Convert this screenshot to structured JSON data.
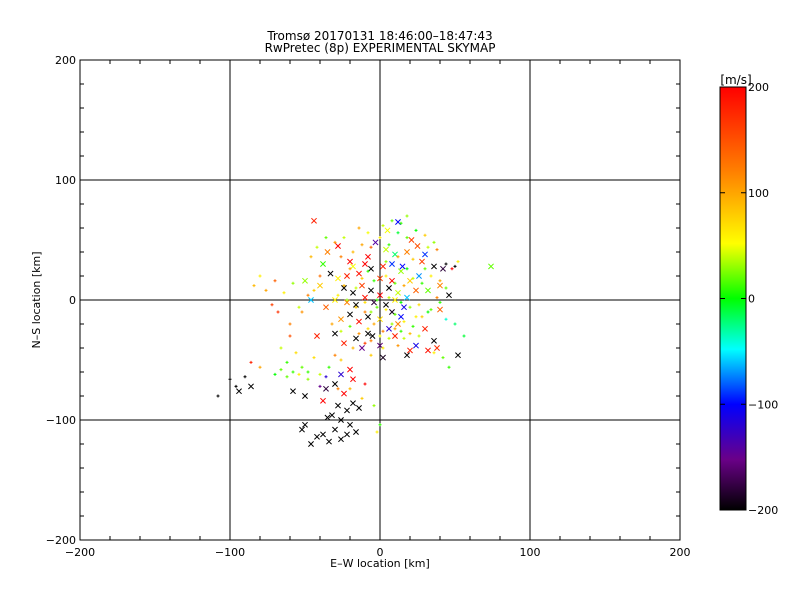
{
  "chart_data": {
    "type": "scatter",
    "title": "Tromsø 20170131 18:46:00–18:47:43",
    "subtitle": "RwPretec (8p) EXPERIMENTAL SKYMAP",
    "xlabel": "E–W location [km]",
    "ylabel": "N–S location [km]",
    "xlim": [
      -200,
      200
    ],
    "ylim": [
      -200,
      200
    ],
    "xticks": [
      -200,
      -100,
      0,
      100,
      200
    ],
    "yticks": [
      -200,
      -100,
      0,
      100,
      200
    ],
    "grid": true,
    "colorbar": {
      "label": "[m/s]",
      "range": [
        -200,
        200
      ],
      "ticks": [
        200,
        100,
        0,
        -100,
        -200
      ],
      "stops": [
        "#000000",
        "#6a0088",
        "#0000ff",
        "#00ffff",
        "#00ff00",
        "#ffff00",
        "#ff8000",
        "#ff0000"
      ]
    },
    "series": [
      {
        "marker": "x",
        "points": [
          [
            -3,
            48,
            -140
          ],
          [
            5,
            58,
            50
          ],
          [
            12,
            65,
            -100
          ],
          [
            21,
            50,
            160
          ],
          [
            -44,
            66,
            180
          ],
          [
            -28,
            45,
            200
          ],
          [
            -35,
            40,
            120
          ],
          [
            4,
            42,
            40
          ],
          [
            10,
            38,
            -20
          ],
          [
            -20,
            32,
            200
          ],
          [
            -33,
            22,
            -200
          ],
          [
            -28,
            18,
            60
          ],
          [
            -22,
            20,
            180
          ],
          [
            -14,
            22,
            190
          ],
          [
            -6,
            26,
            -200
          ],
          [
            2,
            28,
            180
          ],
          [
            8,
            30,
            -90
          ],
          [
            14,
            24,
            30
          ],
          [
            20,
            16,
            80
          ],
          [
            26,
            20,
            -70
          ],
          [
            -24,
            10,
            -200
          ],
          [
            -18,
            6,
            -200
          ],
          [
            -12,
            12,
            160
          ],
          [
            -6,
            8,
            -200
          ],
          [
            0,
            4,
            200
          ],
          [
            6,
            10,
            -200
          ],
          [
            12,
            6,
            40
          ],
          [
            18,
            2,
            -60
          ],
          [
            24,
            8,
            140
          ],
          [
            -22,
            -2,
            120
          ],
          [
            -16,
            -4,
            -200
          ],
          [
            -10,
            2,
            190
          ],
          [
            -4,
            -2,
            -180
          ],
          [
            4,
            -4,
            -200
          ],
          [
            10,
            0,
            60
          ],
          [
            16,
            -6,
            -110
          ],
          [
            -26,
            -16,
            110
          ],
          [
            -20,
            -12,
            -200
          ],
          [
            -14,
            -18,
            190
          ],
          [
            -8,
            -14,
            -200
          ],
          [
            0,
            -16,
            70
          ],
          [
            8,
            -10,
            -190
          ],
          [
            14,
            -14,
            -100
          ],
          [
            -30,
            -28,
            -200
          ],
          [
            -24,
            -36,
            180
          ],
          [
            -16,
            -32,
            -200
          ],
          [
            -8,
            -28,
            -200
          ],
          [
            0,
            -38,
            -160
          ],
          [
            2,
            -48,
            -190
          ],
          [
            30,
            -24,
            180
          ],
          [
            36,
            -34,
            -200
          ],
          [
            24,
            -38,
            -110
          ],
          [
            -42,
            -30,
            180
          ],
          [
            20,
            -42,
            180
          ],
          [
            32,
            -42,
            190
          ],
          [
            38,
            -40,
            170
          ],
          [
            52,
            -46,
            -200
          ],
          [
            18,
            -46,
            -200
          ],
          [
            -20,
            -58,
            200
          ],
          [
            -26,
            -62,
            -120
          ],
          [
            -36,
            -74,
            -180
          ],
          [
            -30,
            -70,
            -200
          ],
          [
            -24,
            -78,
            200
          ],
          [
            -18,
            -66,
            200
          ],
          [
            -58,
            -76,
            -200
          ],
          [
            -50,
            -80,
            -200
          ],
          [
            -38,
            -84,
            200
          ],
          [
            -28,
            -88,
            -200
          ],
          [
            -22,
            -92,
            -200
          ],
          [
            -18,
            -86,
            -200
          ],
          [
            -14,
            -90,
            -200
          ],
          [
            -32,
            -96,
            -200
          ],
          [
            -26,
            -100,
            -200
          ],
          [
            -20,
            -104,
            -200
          ],
          [
            -16,
            -110,
            -200
          ],
          [
            -30,
            -108,
            -200
          ],
          [
            -22,
            -112,
            -200
          ],
          [
            -34,
            -118,
            -200
          ],
          [
            -42,
            -114,
            -200
          ],
          [
            -50,
            -104,
            -200
          ],
          [
            -52,
            -108,
            -200
          ],
          [
            -46,
            -120,
            -200
          ],
          [
            -86,
            -72,
            -200
          ],
          [
            -94,
            -76,
            -200
          ],
          [
            -26,
            -116,
            -200
          ],
          [
            -35,
            -98,
            -200
          ],
          [
            -38,
            -112,
            -200
          ],
          [
            8,
            16,
            200
          ],
          [
            15,
            28,
            -100
          ],
          [
            -10,
            30,
            200
          ],
          [
            0,
            18,
            160
          ],
          [
            28,
            32,
            160
          ],
          [
            36,
            28,
            -200
          ],
          [
            42,
            26,
            -180
          ],
          [
            32,
            8,
            20
          ],
          [
            40,
            12,
            120
          ],
          [
            46,
            4,
            -200
          ],
          [
            40,
            -8,
            140
          ],
          [
            74,
            28,
            20
          ],
          [
            -8,
            36,
            200
          ],
          [
            18,
            40,
            120
          ],
          [
            25,
            45,
            150
          ],
          [
            30,
            38,
            -90
          ],
          [
            -38,
            30,
            10
          ],
          [
            -12,
            -40,
            -150
          ],
          [
            -5,
            -30,
            -200
          ],
          [
            6,
            -24,
            -120
          ],
          [
            10,
            -30,
            180
          ],
          [
            12,
            -20,
            120
          ],
          [
            -40,
            12,
            80
          ],
          [
            -46,
            0,
            -60
          ],
          [
            -30,
            0,
            60
          ],
          [
            -36,
            -6,
            140
          ],
          [
            -50,
            16,
            30
          ],
          [
            -18,
            28,
            50
          ]
        ]
      },
      {
        "marker": "+",
        "points": [
          [
            -84,
            12,
            90
          ],
          [
            -80,
            20,
            60
          ],
          [
            -76,
            8,
            100
          ],
          [
            -70,
            16,
            140
          ],
          [
            -64,
            6,
            60
          ],
          [
            -58,
            14,
            30
          ],
          [
            -54,
            -6,
            40
          ],
          [
            -48,
            4,
            120
          ],
          [
            -68,
            -10,
            170
          ],
          [
            -72,
            -4,
            160
          ],
          [
            -60,
            -20,
            120
          ],
          [
            -56,
            -44,
            70
          ],
          [
            -62,
            -52,
            10
          ],
          [
            -66,
            -58,
            20
          ],
          [
            -70,
            -62,
            0
          ],
          [
            -58,
            -60,
            10
          ],
          [
            -52,
            -56,
            20
          ],
          [
            -48,
            -66,
            30
          ],
          [
            -40,
            -62,
            40
          ],
          [
            -34,
            -56,
            10
          ],
          [
            -44,
            -48,
            70
          ],
          [
            -30,
            -46,
            120
          ],
          [
            -26,
            -50,
            80
          ],
          [
            -18,
            -40,
            90
          ],
          [
            -10,
            -36,
            160
          ],
          [
            -4,
            -20,
            100
          ],
          [
            2,
            -26,
            120
          ],
          [
            6,
            -32,
            40
          ],
          [
            12,
            -38,
            110
          ],
          [
            -6,
            -10,
            30
          ],
          [
            -2,
            -6,
            20
          ],
          [
            4,
            -8,
            60
          ],
          [
            10,
            -12,
            20
          ],
          [
            16,
            -18,
            60
          ],
          [
            22,
            -22,
            10
          ],
          [
            28,
            -14,
            80
          ],
          [
            34,
            -8,
            20
          ],
          [
            40,
            -2,
            10
          ],
          [
            44,
            -16,
            -40
          ],
          [
            50,
            -20,
            -20
          ],
          [
            56,
            -30,
            -10
          ],
          [
            -18,
            40,
            90
          ],
          [
            -12,
            46,
            100
          ],
          [
            -6,
            44,
            140
          ],
          [
            0,
            52,
            60
          ],
          [
            6,
            46,
            10
          ],
          [
            12,
            56,
            -10
          ],
          [
            18,
            52,
            20
          ],
          [
            24,
            58,
            0
          ],
          [
            30,
            54,
            80
          ],
          [
            36,
            48,
            30
          ],
          [
            -26,
            36,
            120
          ],
          [
            -20,
            26,
            100
          ],
          [
            -12,
            18,
            80
          ],
          [
            -4,
            16,
            10
          ],
          [
            4,
            20,
            60
          ],
          [
            10,
            14,
            20
          ],
          [
            16,
            12,
            100
          ],
          [
            22,
            18,
            40
          ],
          [
            28,
            14,
            10
          ],
          [
            34,
            20,
            60
          ],
          [
            40,
            16,
            100
          ],
          [
            44,
            10,
            20
          ],
          [
            -28,
            4,
            60
          ],
          [
            -22,
            0,
            30
          ],
          [
            -16,
            -6,
            80
          ],
          [
            -10,
            -10,
            120
          ],
          [
            -2,
            0,
            10
          ],
          [
            6,
            2,
            40
          ],
          [
            14,
            -2,
            0
          ],
          [
            20,
            -6,
            30
          ],
          [
            26,
            -4,
            70
          ],
          [
            32,
            -10,
            0
          ],
          [
            38,
            2,
            120
          ],
          [
            -32,
            -20,
            100
          ],
          [
            -26,
            -26,
            40
          ],
          [
            -20,
            -22,
            20
          ],
          [
            -14,
            -28,
            110
          ],
          [
            -8,
            -24,
            70
          ],
          [
            8,
            -20,
            30
          ],
          [
            14,
            -26,
            10
          ],
          [
            20,
            -28,
            90
          ],
          [
            26,
            -30,
            40
          ],
          [
            -80,
            -56,
            100
          ],
          [
            -86,
            -52,
            180
          ],
          [
            -62,
            -64,
            20
          ],
          [
            -54,
            -62,
            60
          ],
          [
            -48,
            -60,
            10
          ],
          [
            -36,
            -64,
            -120
          ],
          [
            -28,
            -74,
            120
          ],
          [
            -40,
            -72,
            -150
          ],
          [
            -20,
            -74,
            90
          ],
          [
            -10,
            -70,
            200
          ],
          [
            0,
            -104,
            10
          ],
          [
            -2,
            -110,
            60
          ],
          [
            10,
            -24,
            100
          ],
          [
            16,
            -32,
            40
          ],
          [
            -6,
            -46,
            80
          ],
          [
            2,
            -40,
            60
          ],
          [
            48,
            26,
            200
          ],
          [
            52,
            32,
            60
          ],
          [
            -14,
            60,
            100
          ],
          [
            -8,
            56,
            50
          ],
          [
            2,
            62,
            40
          ],
          [
            8,
            66,
            20
          ],
          [
            14,
            64,
            10
          ],
          [
            36,
            -44,
            60
          ],
          [
            42,
            -48,
            20
          ],
          [
            46,
            -56,
            10
          ],
          [
            -100,
            -66,
            -200
          ],
          [
            -108,
            -80,
            -200
          ],
          [
            -96,
            -72,
            -200
          ],
          [
            -90,
            -64,
            -200
          ],
          [
            -12,
            -82,
            80
          ],
          [
            -4,
            -88,
            30
          ],
          [
            18,
            70,
            30
          ],
          [
            44,
            30,
            -200
          ],
          [
            50,
            28,
            -200
          ],
          [
            -30,
            48,
            110
          ],
          [
            -36,
            52,
            20
          ],
          [
            -42,
            44,
            40
          ],
          [
            -46,
            36,
            90
          ],
          [
            -24,
            52,
            40
          ],
          [
            32,
            44,
            40
          ],
          [
            38,
            42,
            120
          ],
          [
            -8,
            24,
            10
          ],
          [
            4,
            32,
            30
          ],
          [
            12,
            36,
            100
          ],
          [
            -16,
            10,
            40
          ],
          [
            -10,
            -2,
            70
          ],
          [
            18,
            26,
            0
          ],
          [
            22,
            34,
            80
          ],
          [
            -6,
            -34,
            120
          ],
          [
            0,
            -30,
            50
          ],
          [
            30,
            26,
            20
          ],
          [
            24,
            -14,
            60
          ],
          [
            -24,
            12,
            90
          ],
          [
            -40,
            20,
            130
          ],
          [
            -44,
            8,
            80
          ],
          [
            -52,
            -10,
            110
          ],
          [
            -60,
            -30,
            150
          ],
          [
            -66,
            -40,
            40
          ]
        ]
      }
    ]
  }
}
